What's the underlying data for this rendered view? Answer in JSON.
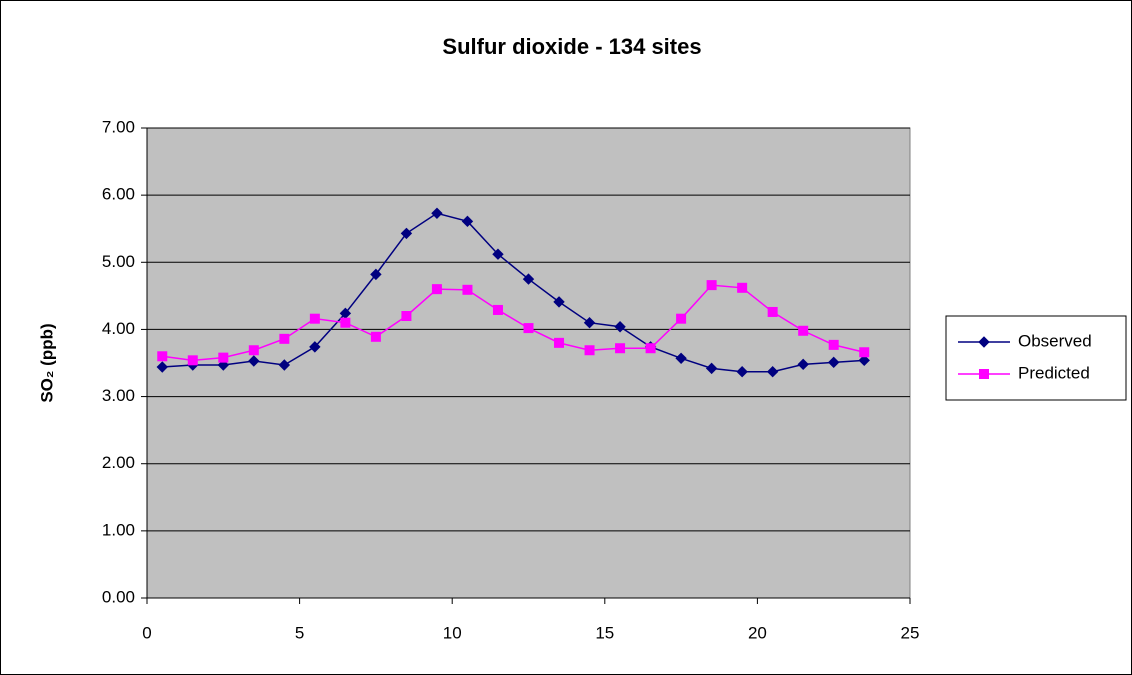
{
  "chart_data": {
    "type": "line",
    "title": "Sulfur dioxide - 134 sites",
    "y_label": "SO₂ (ppb)",
    "x": [
      0.5,
      1.5,
      2.5,
      3.5,
      4.5,
      5.5,
      6.5,
      7.5,
      8.5,
      9.5,
      10.5,
      11.5,
      12.5,
      13.5,
      14.5,
      15.5,
      16.5,
      17.5,
      18.5,
      19.5,
      20.5,
      21.5,
      22.5,
      23.5
    ],
    "series": [
      {
        "name": "Observed",
        "color": "#000080",
        "marker": "diamond",
        "values": [
          3.44,
          3.47,
          3.47,
          3.53,
          3.47,
          3.74,
          4.24,
          4.82,
          5.43,
          5.73,
          5.61,
          5.12,
          4.75,
          4.41,
          4.1,
          4.04,
          3.74,
          3.57,
          3.42,
          3.37,
          3.37,
          3.48,
          3.51,
          3.54
        ]
      },
      {
        "name": "Predicted",
        "color": "#ff00ff",
        "marker": "square",
        "values": [
          3.6,
          3.54,
          3.58,
          3.69,
          3.86,
          4.16,
          4.1,
          3.89,
          4.2,
          4.6,
          4.59,
          4.29,
          4.02,
          3.8,
          3.69,
          3.72,
          3.72,
          4.16,
          4.66,
          4.62,
          4.26,
          3.98,
          3.77,
          3.66
        ]
      }
    ],
    "xlim": [
      0,
      25
    ],
    "xticks": [
      0,
      5,
      10,
      15,
      20,
      25
    ],
    "ylim": [
      0,
      7
    ],
    "yticks": [
      {
        "value": 0,
        "label": "0.00"
      },
      {
        "value": 1,
        "label": "1.00"
      },
      {
        "value": 2,
        "label": "2.00"
      },
      {
        "value": 3,
        "label": "3.00"
      },
      {
        "value": 4,
        "label": "4.00"
      },
      {
        "value": 5,
        "label": "5.00"
      },
      {
        "value": 6,
        "label": "6.00"
      },
      {
        "value": 7,
        "label": "7.00"
      }
    ],
    "grid": true,
    "legend": "right",
    "plot_background": "#c0c0c0"
  }
}
